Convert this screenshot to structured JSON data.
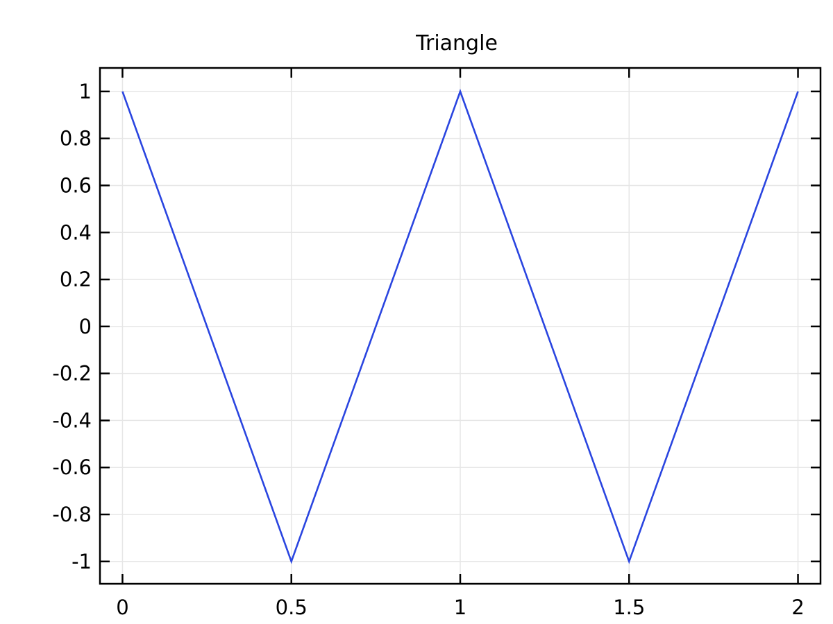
{
  "chart_data": {
    "type": "line",
    "title": "Triangle",
    "xlabel": "",
    "ylabel": "",
    "xlim": [
      -0.0667,
      2.0667
    ],
    "ylim": [
      -1.095,
      1.1
    ],
    "grid": true,
    "x_ticks": [
      0,
      0.5,
      1,
      1.5,
      2
    ],
    "x_tick_labels": [
      "0",
      "0.5",
      "1",
      "1.5",
      "2"
    ],
    "y_ticks": [
      1,
      0.8,
      0.6,
      0.4,
      0.2,
      0,
      -0.2,
      -0.4,
      -0.6,
      -0.8,
      -1
    ],
    "y_tick_labels": [
      "1",
      "0.8",
      "0.6",
      "0.4",
      "0.2",
      "0",
      "-0.2",
      "-0.4",
      "-0.6",
      "-0.8",
      "-1"
    ],
    "series": [
      {
        "color": "#2a45e0",
        "x": [
          0,
          0.5,
          1,
          1.5,
          2
        ],
        "y": [
          1,
          -1,
          1,
          -1,
          1
        ]
      }
    ]
  }
}
